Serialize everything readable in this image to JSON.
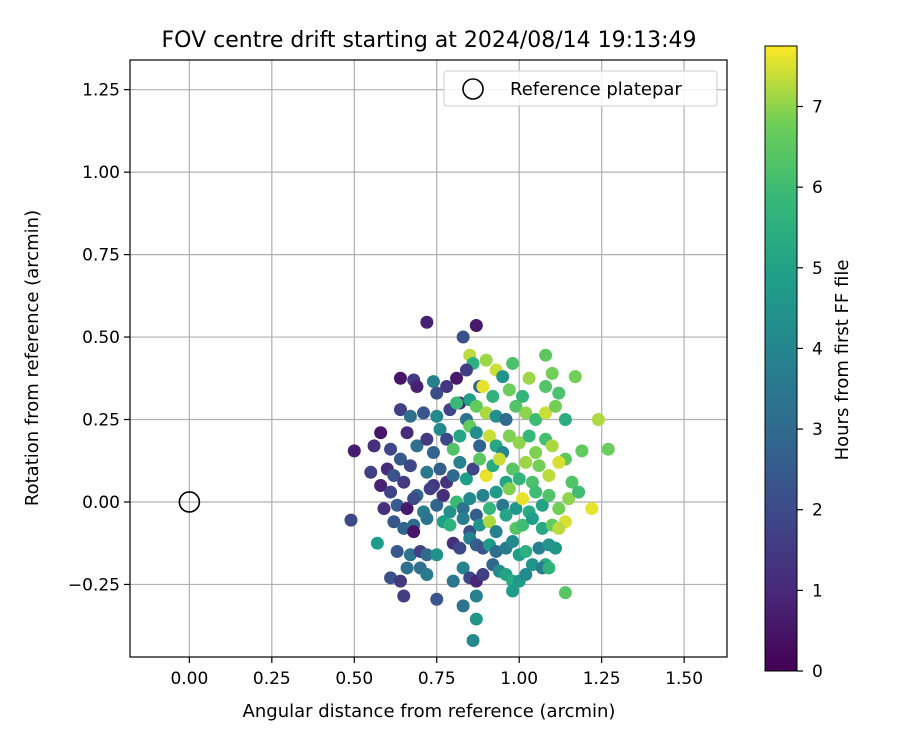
{
  "chart_data": {
    "type": "scatter",
    "title": "FOV centre drift starting at 2024/08/14 19:13:49",
    "xlabel": "Angular distance from reference (arcmin)",
    "ylabel": "Rotation from reference (arcmin)",
    "xlim": [
      -0.18,
      1.63
    ],
    "ylim": [
      -0.47,
      1.34
    ],
    "xticks": [
      "0.00",
      "0.25",
      "0.50",
      "0.75",
      "1.00",
      "1.25",
      "1.50"
    ],
    "yticks": [
      "−0.25",
      "0.00",
      "0.25",
      "0.50",
      "0.75",
      "1.00",
      "1.25"
    ],
    "grid": true,
    "legend": {
      "position": "top-right",
      "entries": [
        "Reference platepar"
      ]
    },
    "reference_point": {
      "x": 0.0,
      "y": 0.0
    },
    "colormap": "viridis",
    "colorbar": {
      "label": "Hours from first FF file",
      "min": 0,
      "max": 7.75,
      "ticks": [
        "0",
        "1",
        "2",
        "3",
        "4",
        "5",
        "6",
        "7"
      ]
    },
    "points": [
      [
        0.72,
        0.545,
        0.8
      ],
      [
        0.87,
        0.535,
        0.6
      ],
      [
        0.83,
        0.5,
        2.2
      ],
      [
        0.85,
        0.445,
        7.3
      ],
      [
        0.86,
        0.42,
        5.5
      ],
      [
        0.9,
        0.43,
        7.1
      ],
      [
        0.93,
        0.4,
        7.4
      ],
      [
        0.98,
        0.42,
        6.2
      ],
      [
        1.08,
        0.445,
        6.5
      ],
      [
        1.1,
        0.39,
        6.8
      ],
      [
        1.17,
        0.38,
        6.8
      ],
      [
        0.64,
        0.375,
        0.5
      ],
      [
        0.68,
        0.37,
        1.5
      ],
      [
        0.74,
        0.365,
        3.8
      ],
      [
        0.81,
        0.375,
        0.6
      ],
      [
        0.84,
        0.4,
        1.6
      ],
      [
        0.88,
        0.35,
        2.8
      ],
      [
        0.95,
        0.38,
        4.5
      ],
      [
        1.03,
        0.375,
        7.1
      ],
      [
        1.08,
        0.35,
        6.3
      ],
      [
        1.12,
        0.33,
        6.2
      ],
      [
        0.69,
        0.35,
        0.8
      ],
      [
        0.75,
        0.33,
        2.1
      ],
      [
        0.78,
        0.35,
        1.4
      ],
      [
        0.82,
        0.3,
        1.0
      ],
      [
        0.85,
        0.31,
        4.9
      ],
      [
        0.89,
        0.35,
        7.6
      ],
      [
        0.92,
        0.32,
        5.6
      ],
      [
        0.97,
        0.34,
        6.7
      ],
      [
        1.01,
        0.32,
        5.7
      ],
      [
        0.64,
        0.28,
        1.7
      ],
      [
        0.67,
        0.26,
        3.2
      ],
      [
        0.71,
        0.27,
        2.3
      ],
      [
        0.75,
        0.26,
        4.1
      ],
      [
        0.79,
        0.28,
        1.8
      ],
      [
        0.81,
        0.3,
        5.9
      ],
      [
        0.84,
        0.25,
        3.3
      ],
      [
        0.87,
        0.29,
        6.6
      ],
      [
        0.9,
        0.27,
        7.2
      ],
      [
        0.93,
        0.26,
        4.4
      ],
      [
        0.96,
        0.25,
        3.0
      ],
      [
        0.99,
        0.29,
        6.3
      ],
      [
        1.02,
        0.27,
        7.0
      ],
      [
        1.05,
        0.25,
        6.0
      ],
      [
        1.08,
        0.27,
        7.4
      ],
      [
        1.11,
        0.29,
        6.8
      ],
      [
        1.14,
        0.25,
        5.4
      ],
      [
        1.24,
        0.25,
        7.2
      ],
      [
        0.56,
        0.17,
        1.2
      ],
      [
        0.58,
        0.21,
        0.5
      ],
      [
        0.61,
        0.16,
        1.9
      ],
      [
        0.64,
        0.13,
        2.4
      ],
      [
        0.66,
        0.21,
        1.1
      ],
      [
        0.69,
        0.17,
        3.2
      ],
      [
        0.72,
        0.19,
        1.5
      ],
      [
        0.74,
        0.15,
        2.7
      ],
      [
        0.76,
        0.22,
        4.2
      ],
      [
        0.78,
        0.19,
        1.9
      ],
      [
        0.8,
        0.16,
        6.3
      ],
      [
        0.82,
        0.2,
        5.1
      ],
      [
        0.85,
        0.23,
        6.6
      ],
      [
        0.87,
        0.21,
        4.3
      ],
      [
        0.88,
        0.17,
        2.8
      ],
      [
        0.91,
        0.2,
        7.4
      ],
      [
        0.93,
        0.17,
        5.2
      ],
      [
        0.95,
        0.15,
        4.0
      ],
      [
        0.97,
        0.2,
        6.9
      ],
      [
        1.0,
        0.18,
        7.0
      ],
      [
        1.03,
        0.2,
        5.8
      ],
      [
        1.05,
        0.15,
        6.9
      ],
      [
        1.08,
        0.19,
        6.1
      ],
      [
        1.1,
        0.17,
        7.2
      ],
      [
        1.14,
        0.13,
        6.5
      ],
      [
        1.19,
        0.155,
        6.6
      ],
      [
        1.27,
        0.16,
        6.7
      ],
      [
        0.5,
        0.155,
        0.7
      ],
      [
        0.55,
        0.09,
        1.7
      ],
      [
        0.58,
        0.05,
        0.8
      ],
      [
        0.6,
        0.1,
        1.1
      ],
      [
        0.62,
        0.08,
        2.3
      ],
      [
        0.65,
        0.06,
        1.5
      ],
      [
        0.67,
        0.11,
        1.9
      ],
      [
        0.69,
        0.02,
        2.9
      ],
      [
        0.72,
        0.09,
        3.5
      ],
      [
        0.74,
        0.05,
        1.4
      ],
      [
        0.76,
        0.1,
        2.6
      ],
      [
        0.78,
        0.06,
        1.3
      ],
      [
        0.8,
        0.08,
        3.0
      ],
      [
        0.82,
        0.12,
        3.9
      ],
      [
        0.84,
        0.07,
        4.8
      ],
      [
        0.86,
        0.1,
        1.8
      ],
      [
        0.88,
        0.13,
        6.5
      ],
      [
        0.9,
        0.08,
        7.6
      ],
      [
        0.92,
        0.11,
        5.3
      ],
      [
        0.94,
        0.13,
        7.4
      ],
      [
        0.96,
        0.06,
        5.0
      ],
      [
        0.98,
        0.1,
        6.4
      ],
      [
        1.0,
        0.07,
        5.7
      ],
      [
        1.02,
        0.12,
        7.1
      ],
      [
        1.04,
        0.06,
        6.2
      ],
      [
        1.06,
        0.11,
        6.8
      ],
      [
        1.09,
        0.08,
        7.3
      ],
      [
        1.12,
        0.12,
        7.5
      ],
      [
        1.16,
        0.06,
        6.3
      ],
      [
        0.59,
        -0.02,
        1.2
      ],
      [
        0.61,
        0.03,
        1.8
      ],
      [
        0.63,
        -0.01,
        2.5
      ],
      [
        0.66,
        -0.02,
        0.6
      ],
      [
        0.68,
        0.01,
        2.0
      ],
      [
        0.71,
        -0.03,
        3.7
      ],
      [
        0.73,
        0.04,
        1.6
      ],
      [
        0.75,
        -0.01,
        2.8
      ],
      [
        0.77,
        0.02,
        1.2
      ],
      [
        0.79,
        -0.03,
        4.4
      ],
      [
        0.81,
        0.0,
        5.9
      ],
      [
        0.83,
        -0.02,
        3.3
      ],
      [
        0.85,
        0.01,
        4.1
      ],
      [
        0.87,
        -0.04,
        2.6
      ],
      [
        0.89,
        0.02,
        3.9
      ],
      [
        0.91,
        -0.02,
        5.8
      ],
      [
        0.93,
        0.03,
        4.7
      ],
      [
        0.95,
        -0.01,
        3.5
      ],
      [
        0.97,
        0.04,
        6.9
      ],
      [
        0.99,
        -0.02,
        4.6
      ],
      [
        1.01,
        0.01,
        7.6
      ],
      [
        1.03,
        -0.03,
        5.3
      ],
      [
        1.05,
        0.03,
        6.0
      ],
      [
        1.07,
        -0.01,
        5.0
      ],
      [
        1.09,
        0.02,
        6.3
      ],
      [
        1.12,
        -0.02,
        6.8
      ],
      [
        1.15,
        0.01,
        7.0
      ],
      [
        1.18,
        0.03,
        6.0
      ],
      [
        1.22,
        -0.02,
        7.6
      ],
      [
        0.49,
        -0.055,
        1.9
      ],
      [
        0.62,
        -0.06,
        2.4
      ],
      [
        0.65,
        -0.08,
        2.8
      ],
      [
        0.68,
        -0.07,
        3.1
      ],
      [
        0.68,
        -0.09,
        0.5
      ],
      [
        0.72,
        -0.05,
        3.3
      ],
      [
        0.77,
        -0.06,
        4.9
      ],
      [
        0.79,
        -0.07,
        5.6
      ],
      [
        0.83,
        -0.05,
        3.7
      ],
      [
        0.85,
        -0.09,
        2.1
      ],
      [
        0.88,
        -0.07,
        4.5
      ],
      [
        0.91,
        -0.06,
        7.2
      ],
      [
        0.93,
        -0.09,
        3.8
      ],
      [
        0.96,
        -0.04,
        5.1
      ],
      [
        0.99,
        -0.08,
        6.4
      ],
      [
        1.01,
        -0.07,
        6.0
      ],
      [
        1.04,
        -0.05,
        4.9
      ],
      [
        1.07,
        -0.08,
        5.2
      ],
      [
        1.1,
        -0.07,
        6.6
      ],
      [
        1.14,
        -0.06,
        7.5
      ],
      [
        1.12,
        -0.08,
        7.3
      ],
      [
        0.57,
        -0.125,
        4.8
      ],
      [
        0.63,
        -0.15,
        2.4
      ],
      [
        0.67,
        -0.16,
        3.4
      ],
      [
        0.7,
        -0.15,
        1.6
      ],
      [
        0.72,
        -0.16,
        3.0
      ],
      [
        0.75,
        -0.16,
        4.4
      ],
      [
        0.8,
        -0.125,
        1.2
      ],
      [
        0.82,
        -0.14,
        1.9
      ],
      [
        0.85,
        -0.11,
        3.8
      ],
      [
        0.87,
        -0.13,
        2.6
      ],
      [
        0.89,
        -0.14,
        2.3
      ],
      [
        0.91,
        -0.13,
        4.7
      ],
      [
        0.93,
        -0.15,
        3.1
      ],
      [
        0.96,
        -0.14,
        3.6
      ],
      [
        0.98,
        -0.12,
        4.1
      ],
      [
        1.0,
        -0.16,
        4.8
      ],
      [
        1.02,
        -0.15,
        5.5
      ],
      [
        1.04,
        -0.19,
        4.6
      ],
      [
        1.06,
        -0.14,
        3.8
      ],
      [
        1.08,
        -0.19,
        5.3
      ],
      [
        1.09,
        -0.13,
        4.5
      ],
      [
        1.11,
        -0.14,
        4.6
      ],
      [
        0.61,
        -0.23,
        2.2
      ],
      [
        0.64,
        -0.24,
        1.5
      ],
      [
        0.66,
        -0.2,
        3.2
      ],
      [
        0.7,
        -0.2,
        3.2
      ],
      [
        0.72,
        -0.22,
        3.6
      ],
      [
        0.8,
        -0.24,
        3.4
      ],
      [
        0.83,
        -0.2,
        3.9
      ],
      [
        0.85,
        -0.23,
        1.9
      ],
      [
        0.87,
        -0.24,
        0.9
      ],
      [
        0.89,
        -0.22,
        1.6
      ],
      [
        0.92,
        -0.19,
        2.9
      ],
      [
        0.94,
        -0.21,
        4.2
      ],
      [
        0.96,
        -0.22,
        5.0
      ],
      [
        0.98,
        -0.24,
        5.3
      ],
      [
        1.0,
        -0.24,
        4.7
      ],
      [
        1.02,
        -0.22,
        4.2
      ],
      [
        1.07,
        -0.2,
        3.6
      ],
      [
        1.09,
        -0.2,
        5.6
      ],
      [
        1.14,
        -0.275,
        6.4
      ],
      [
        0.65,
        -0.285,
        1.6
      ],
      [
        0.75,
        -0.295,
        2.3
      ],
      [
        0.83,
        -0.315,
        3.3
      ],
      [
        0.87,
        -0.285,
        3.8
      ],
      [
        0.98,
        -0.27,
        4.8
      ],
      [
        0.87,
        -0.355,
        4.6
      ],
      [
        0.86,
        -0.42,
        4.1
      ]
    ]
  }
}
